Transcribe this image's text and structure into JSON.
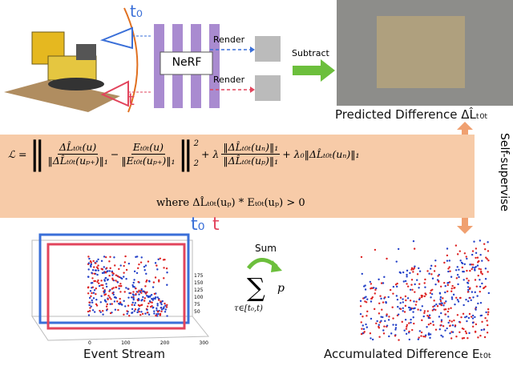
{
  "top": {
    "t0": "t₀",
    "t": "t",
    "nerf": "NeRF",
    "render_1": "Render",
    "render_2": "Render",
    "subtract": "Subtract",
    "predicted_caption": "Predicted Difference ΔL̂ₜ₀ₜ"
  },
  "side": {
    "self_supervise": "Self-supervise"
  },
  "formula": {
    "lhs": "ℒ =",
    "open": "‖",
    "frac1": {
      "num": "ΔL̂ₜ₀ₜ(u)",
      "den": "‖ΔL̂ₜ₀ₜ(uₚ₊)‖₁"
    },
    "minus": "−",
    "frac2": {
      "num": "Eₜ₀ₜ(u)",
      "den": "‖Eₜ₀ₜ(uₚ₊)‖₁"
    },
    "close": "‖",
    "sup": "2",
    "sub": "2",
    "plus_lambda": "+ λ",
    "frac3": {
      "num": "‖ΔL̂ₜ₀ₜ(uₙ)‖₁",
      "den": "‖ΔL̂ₜ₀ₜ(uₚ)‖₁"
    },
    "tail": "+ λ₀‖ΔL̂ₜ₀ₜ(uₙ)‖₁",
    "where": "where ΔL̂ₜ₀ₜ(uₚ) * Eₜ₀ₜ(uₚ) > 0"
  },
  "bottom": {
    "t0": "t₀",
    "t": "t",
    "sum": "Sum",
    "sigma": "∑",
    "p": "p",
    "range": "τ∈[t₀,t)",
    "event_caption": "Event Stream",
    "accum_caption": "Accumulated Difference Eₜ₀ₜ",
    "yticks": [
      "175",
      "150",
      "125",
      "100",
      "75",
      "50"
    ],
    "xticks": [
      "0",
      "100",
      "200",
      "300"
    ]
  }
}
